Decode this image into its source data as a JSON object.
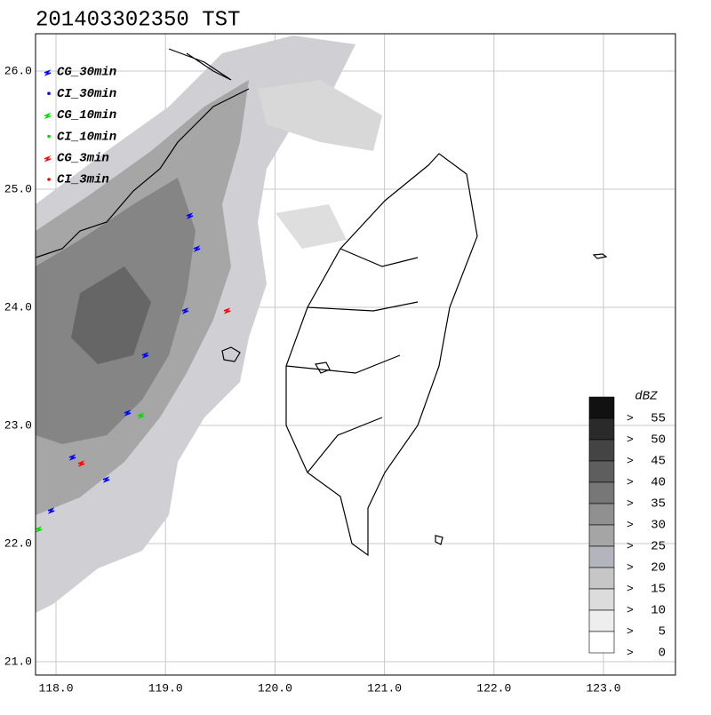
{
  "title": "201403302350 TST",
  "lat_ticks": [
    {
      "value": 26,
      "label": "26.0"
    },
    {
      "value": 25,
      "label": "25.0"
    },
    {
      "value": 24,
      "label": "24.0"
    },
    {
      "value": 23,
      "label": "23.0"
    },
    {
      "value": 22,
      "label": "22.0"
    },
    {
      "value": 21,
      "label": "21.0"
    }
  ],
  "lon_ticks": [
    {
      "value": 118,
      "label": "118.0"
    },
    {
      "value": 119,
      "label": "119.0"
    },
    {
      "value": 120,
      "label": "120.0"
    },
    {
      "value": 121,
      "label": "121.0"
    },
    {
      "value": 122,
      "label": "122.0"
    },
    {
      "value": 123,
      "label": "123.0"
    }
  ],
  "legend": [
    {
      "name": "CG_30min",
      "color": "#0000ff"
    },
    {
      "name": "CI_30min",
      "color": "#0000ff"
    },
    {
      "name": "CG_10min",
      "color": "#00dd00"
    },
    {
      "name": "CI_10min",
      "color": "#00dd00"
    },
    {
      "name": "CG_3min",
      "color": "#ff0000"
    },
    {
      "name": "CI_3min",
      "color": "#ff0000"
    }
  ],
  "colorbar": {
    "unit": "dBZ",
    "prefix": ">",
    "levels": [
      {
        "value": 55,
        "color": "#111111"
      },
      {
        "value": 50,
        "color": "#2a2a2a"
      },
      {
        "value": 45,
        "color": "#444444"
      },
      {
        "value": 40,
        "color": "#5e5e5e"
      },
      {
        "value": 35,
        "color": "#777777"
      },
      {
        "value": 30,
        "color": "#909090"
      },
      {
        "value": 25,
        "color": "#a5a5a5"
      },
      {
        "value": 20,
        "color": "#b4b4be"
      },
      {
        "value": 15,
        "color": "#c6c6c6"
      },
      {
        "value": 10,
        "color": "#dcdcdc"
      },
      {
        "value": 5,
        "color": "#eeeeee"
      },
      {
        "value": 0,
        "color": "#ffffff"
      }
    ]
  }
}
